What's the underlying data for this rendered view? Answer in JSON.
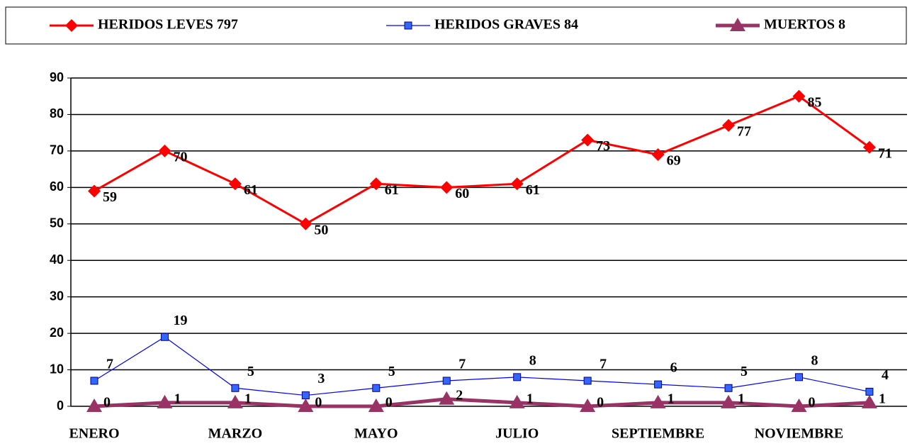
{
  "chart_data": {
    "type": "line",
    "categories": [
      "ENERO",
      null,
      "MARZO",
      null,
      "MAYO",
      null,
      "JULIO",
      null,
      "SEPTIEMBRE",
      null,
      "NOVIEMBRE",
      null
    ],
    "series": [
      {
        "name": "HERIDOS LEVES 797",
        "color": "#ff0000",
        "marker": "diamond",
        "values": [
          59,
          70,
          61,
          50,
          61,
          60,
          61,
          73,
          69,
          77,
          85,
          71
        ]
      },
      {
        "name": "HERIDOS GRAVES 84",
        "color": "#0000ff",
        "marker": "square",
        "values": [
          7,
          19,
          5,
          3,
          5,
          7,
          8,
          7,
          6,
          5,
          8,
          4
        ]
      },
      {
        "name": "MUERTOS 8",
        "color": "#993366",
        "marker": "triangle",
        "values": [
          0,
          1,
          1,
          0,
          0,
          2,
          1,
          0,
          1,
          1,
          0,
          1
        ]
      }
    ],
    "ylim": [
      0,
      90
    ],
    "yticks": [
      0,
      10,
      20,
      30,
      40,
      50,
      60,
      70,
      80,
      90
    ],
    "grid": true,
    "legend": "top"
  }
}
